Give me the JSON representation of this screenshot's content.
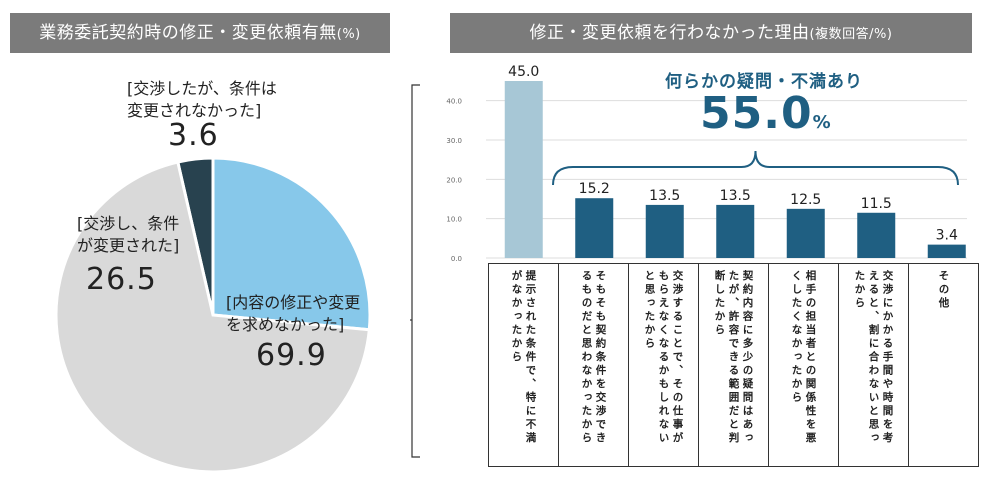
{
  "pie_header": {
    "title": "業務委託契約時の修正・変更依頼有無",
    "suffix": "(%)"
  },
  "bar_header": {
    "title": "修正・変更依頼を行わなかった理由",
    "suffix": "(複数回答/%)"
  },
  "pie_labels": [
    {
      "text_lines": [
        "[交渉したが、条件は",
        "変更されなかった]"
      ],
      "value_text": "3.6"
    },
    {
      "text_lines": [
        "[交渉し、条件",
        "が変更された]"
      ],
      "value_text": "26.5"
    },
    {
      "text_lines": [
        "[内容の修正や変更",
        "を求めなかった]"
      ],
      "value_text": "69.9"
    }
  ],
  "callout": {
    "title": "何らかの疑問・不満あり",
    "value": "55.0",
    "unit": "%"
  },
  "colors": {
    "header_bg": "#7b7b7b",
    "pie_no_request": "#d9d9d9",
    "pie_negotiated_changed": "#87c8ea",
    "pie_negotiated_unchanged": "#28424f",
    "bar_first": "#a7c7d6",
    "bar_other": "#1f5f82",
    "callout": "#1f5f82"
  },
  "chart_data": [
    {
      "type": "pie",
      "title": "業務委託契約時の修正・変更依頼有無(%)",
      "slices": [
        {
          "label": "交渉したが、条件は変更されなかった",
          "value": 3.6
        },
        {
          "label": "交渉し、条件が変更された",
          "value": 26.5
        },
        {
          "label": "内容の修正や変更を求めなかった",
          "value": 69.9
        }
      ]
    },
    {
      "type": "bar",
      "title": "修正・変更依頼を行わなかった理由(複数回答/%)",
      "categories": [
        "提示された条件で、特に不満がなかったから",
        "そもそも契約条件を交渉できるものだと思わなかったから",
        "交渉することで、その仕事がもらえなくなるかもしれないと思ったから",
        "契約内容に多少の疑問はあったが、許容できる範囲だと判断したから",
        "相手の担当者との関係性を悪くしたくなかったから",
        "交渉にかかる手間や時間を考えると、割に合わないと思ったから",
        "その他"
      ],
      "values": [
        45.0,
        15.2,
        13.5,
        13.5,
        12.5,
        11.5,
        3.4
      ],
      "value_labels": [
        "45.0",
        "15.2",
        "13.5",
        "13.5",
        "12.5",
        "11.5",
        "3.4"
      ],
      "ylim": [
        0,
        45
      ],
      "yticks": [
        "0.0",
        "10.0",
        "20.0",
        "30.0",
        "40.0"
      ],
      "grid": true
    }
  ]
}
